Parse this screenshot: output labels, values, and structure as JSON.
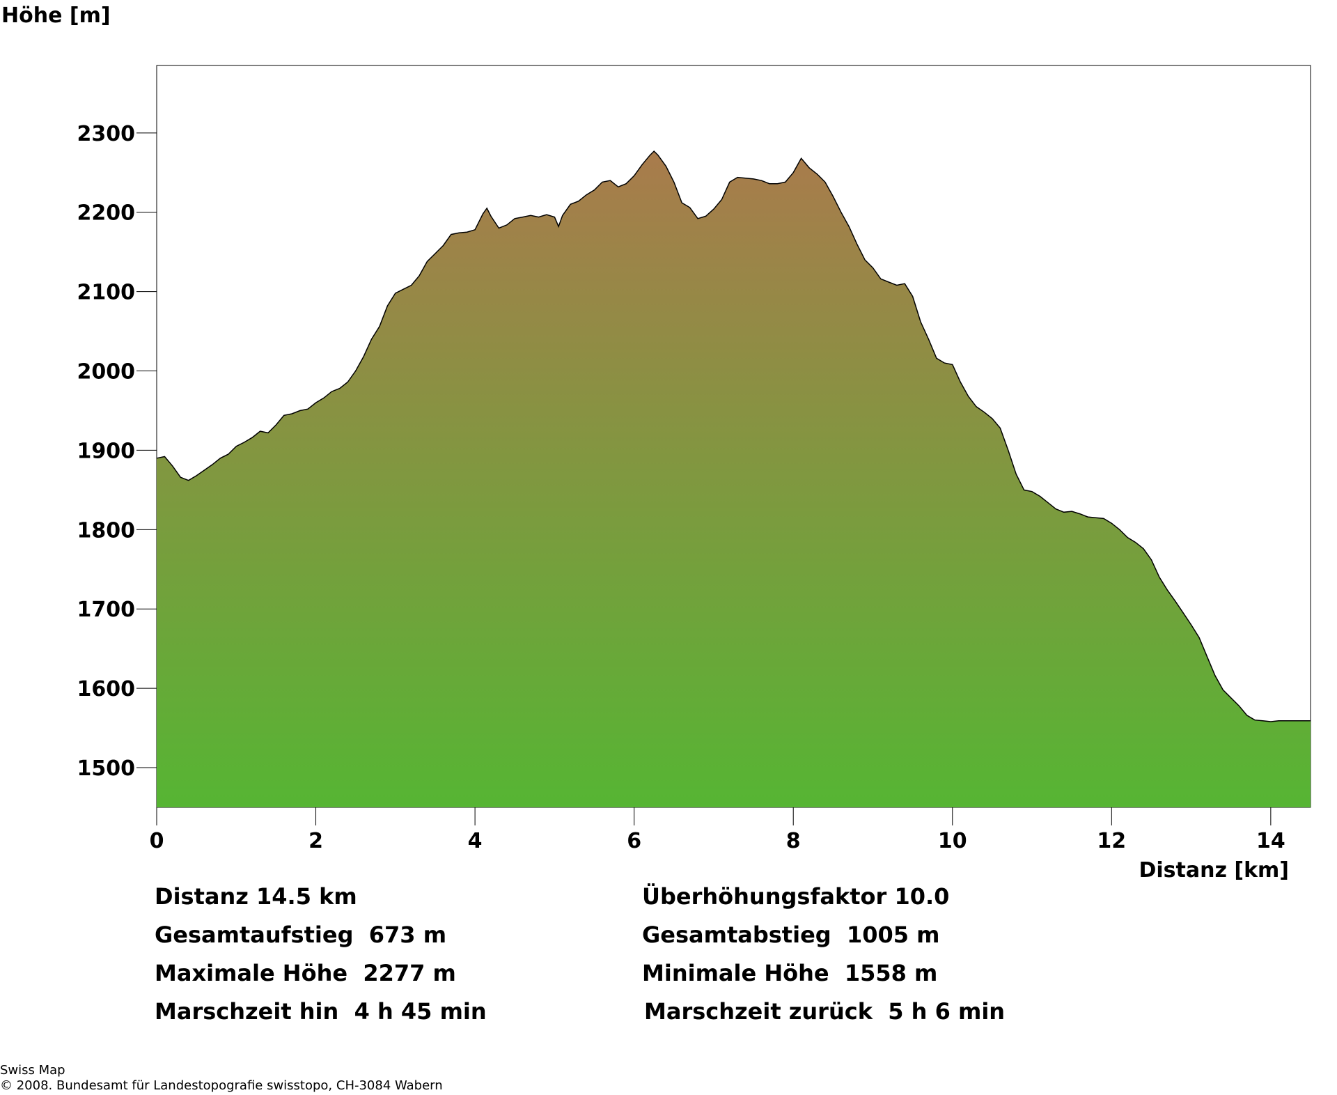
{
  "chart_data": {
    "type": "area",
    "ylabel": "Höhe [m]",
    "xlabel": "Distanz [km]",
    "xlim": [
      0,
      14.5
    ],
    "ylim": [
      1450,
      2385
    ],
    "x_ticks": [
      0,
      2,
      4,
      6,
      8,
      10,
      12,
      14
    ],
    "y_ticks": [
      1500,
      1600,
      1700,
      1800,
      1900,
      2000,
      2100,
      2200,
      2300
    ],
    "fill_gradient": {
      "top": "#a97b4c",
      "bottom": "#56b533"
    },
    "line_color": "#000000",
    "points": [
      [
        0.0,
        1890
      ],
      [
        0.1,
        1892
      ],
      [
        0.2,
        1880
      ],
      [
        0.3,
        1866
      ],
      [
        0.4,
        1862
      ],
      [
        0.5,
        1868
      ],
      [
        0.6,
        1875
      ],
      [
        0.7,
        1882
      ],
      [
        0.8,
        1890
      ],
      [
        0.9,
        1895
      ],
      [
        1.0,
        1905
      ],
      [
        1.1,
        1910
      ],
      [
        1.2,
        1916
      ],
      [
        1.3,
        1924
      ],
      [
        1.4,
        1922
      ],
      [
        1.5,
        1932
      ],
      [
        1.6,
        1944
      ],
      [
        1.7,
        1946
      ],
      [
        1.8,
        1950
      ],
      [
        1.9,
        1952
      ],
      [
        2.0,
        1960
      ],
      [
        2.1,
        1966
      ],
      [
        2.2,
        1974
      ],
      [
        2.3,
        1978
      ],
      [
        2.4,
        1986
      ],
      [
        2.5,
        2000
      ],
      [
        2.6,
        2018
      ],
      [
        2.7,
        2040
      ],
      [
        2.8,
        2056
      ],
      [
        2.9,
        2082
      ],
      [
        3.0,
        2098
      ],
      [
        3.1,
        2103
      ],
      [
        3.2,
        2108
      ],
      [
        3.3,
        2120
      ],
      [
        3.4,
        2138
      ],
      [
        3.5,
        2148
      ],
      [
        3.6,
        2158
      ],
      [
        3.7,
        2172
      ],
      [
        3.8,
        2174
      ],
      [
        3.9,
        2175
      ],
      [
        4.0,
        2178
      ],
      [
        4.1,
        2198
      ],
      [
        4.15,
        2205
      ],
      [
        4.2,
        2195
      ],
      [
        4.3,
        2180
      ],
      [
        4.4,
        2184
      ],
      [
        4.5,
        2192
      ],
      [
        4.6,
        2194
      ],
      [
        4.7,
        2196
      ],
      [
        4.8,
        2194
      ],
      [
        4.9,
        2197
      ],
      [
        5.0,
        2194
      ],
      [
        5.05,
        2182
      ],
      [
        5.1,
        2196
      ],
      [
        5.2,
        2210
      ],
      [
        5.3,
        2214
      ],
      [
        5.4,
        2222
      ],
      [
        5.5,
        2228
      ],
      [
        5.6,
        2238
      ],
      [
        5.7,
        2240
      ],
      [
        5.8,
        2232
      ],
      [
        5.9,
        2236
      ],
      [
        6.0,
        2246
      ],
      [
        6.1,
        2260
      ],
      [
        6.2,
        2272
      ],
      [
        6.25,
        2277
      ],
      [
        6.3,
        2272
      ],
      [
        6.4,
        2258
      ],
      [
        6.5,
        2238
      ],
      [
        6.6,
        2212
      ],
      [
        6.7,
        2206
      ],
      [
        6.8,
        2192
      ],
      [
        6.9,
        2195
      ],
      [
        7.0,
        2204
      ],
      [
        7.1,
        2216
      ],
      [
        7.2,
        2238
      ],
      [
        7.3,
        2244
      ],
      [
        7.4,
        2243
      ],
      [
        7.5,
        2242
      ],
      [
        7.6,
        2240
      ],
      [
        7.7,
        2236
      ],
      [
        7.8,
        2236
      ],
      [
        7.9,
        2238
      ],
      [
        8.0,
        2250
      ],
      [
        8.1,
        2268
      ],
      [
        8.2,
        2256
      ],
      [
        8.3,
        2248
      ],
      [
        8.4,
        2238
      ],
      [
        8.5,
        2220
      ],
      [
        8.6,
        2200
      ],
      [
        8.7,
        2182
      ],
      [
        8.8,
        2160
      ],
      [
        8.9,
        2140
      ],
      [
        9.0,
        2130
      ],
      [
        9.1,
        2116
      ],
      [
        9.2,
        2112
      ],
      [
        9.3,
        2108
      ],
      [
        9.4,
        2110
      ],
      [
        9.5,
        2094
      ],
      [
        9.6,
        2062
      ],
      [
        9.7,
        2040
      ],
      [
        9.8,
        2016
      ],
      [
        9.9,
        2010
      ],
      [
        10.0,
        2008
      ],
      [
        10.1,
        1986
      ],
      [
        10.2,
        1968
      ],
      [
        10.3,
        1955
      ],
      [
        10.4,
        1948
      ],
      [
        10.5,
        1940
      ],
      [
        10.6,
        1928
      ],
      [
        10.7,
        1900
      ],
      [
        10.8,
        1870
      ],
      [
        10.9,
        1850
      ],
      [
        11.0,
        1848
      ],
      [
        11.1,
        1842
      ],
      [
        11.2,
        1834
      ],
      [
        11.3,
        1826
      ],
      [
        11.4,
        1822
      ],
      [
        11.5,
        1823
      ],
      [
        11.6,
        1820
      ],
      [
        11.7,
        1816
      ],
      [
        11.8,
        1815
      ],
      [
        11.9,
        1814
      ],
      [
        12.0,
        1808
      ],
      [
        12.1,
        1800
      ],
      [
        12.2,
        1790
      ],
      [
        12.3,
        1784
      ],
      [
        12.4,
        1776
      ],
      [
        12.5,
        1762
      ],
      [
        12.6,
        1740
      ],
      [
        12.7,
        1724
      ],
      [
        12.8,
        1710
      ],
      [
        12.9,
        1695
      ],
      [
        13.0,
        1680
      ],
      [
        13.1,
        1664
      ],
      [
        13.2,
        1640
      ],
      [
        13.3,
        1616
      ],
      [
        13.4,
        1598
      ],
      [
        13.5,
        1588
      ],
      [
        13.6,
        1578
      ],
      [
        13.7,
        1566
      ],
      [
        13.8,
        1560
      ],
      [
        13.9,
        1559
      ],
      [
        14.0,
        1558
      ],
      [
        14.1,
        1559
      ],
      [
        14.2,
        1559
      ],
      [
        14.3,
        1559
      ],
      [
        14.4,
        1559
      ],
      [
        14.5,
        1559
      ]
    ]
  },
  "stats": {
    "distanz": "Distanz 14.5 km",
    "ueberhoehung": "Überhöhungsfaktor 10.0",
    "aufstieg": "Gesamtaufstieg  673 m",
    "abstieg": "Gesamtabstieg  1005 m",
    "max_hoehe": "Maximale Höhe  2277 m",
    "min_hoehe": "Minimale Höhe  1558 m",
    "marsch_hin": "Marschzeit hin  4 h 45 min",
    "marsch_zurueck": "Marschzeit zurück  5 h 6 min"
  },
  "footer": {
    "line1": "Swiss Map",
    "line2": "© 2008. Bundesamt für Landestopografie swisstopo, CH-3084 Wabern"
  }
}
